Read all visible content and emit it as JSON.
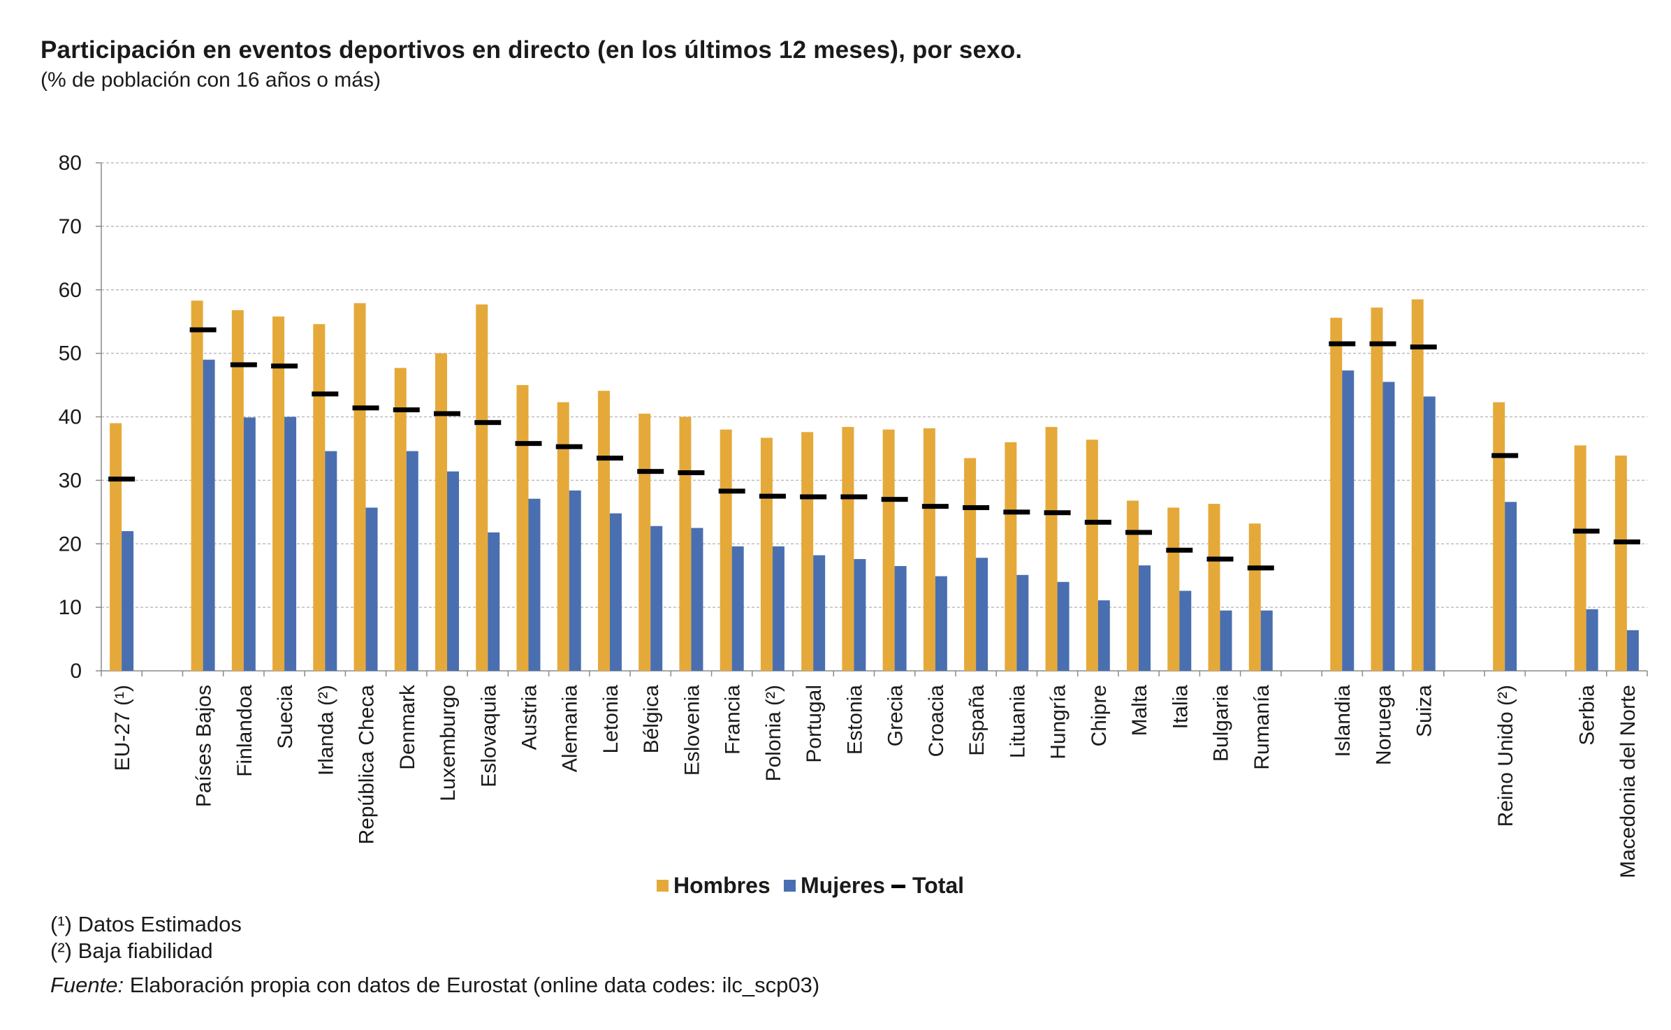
{
  "title": "Participación en eventos deportivos en directo (en los últimos 12 meses), por sexo.",
  "subtitle": "(% de población con 16 años o más)",
  "notes": [
    "(¹) Datos Estimados",
    "(²) Baja fiabilidad"
  ],
  "source_prefix": "Fuente:",
  "source_text": " Elaboración propia con datos de Eurostat (online data codes: ilc_scp03)",
  "chart_data": {
    "type": "bar",
    "title": "Participación en eventos deportivos en directo (en los últimos 12 meses), por sexo.",
    "subtitle": "(% de población con 16 años o más)",
    "ylim": [
      0,
      80
    ],
    "yticks": [
      0,
      10,
      20,
      30,
      40,
      50,
      60,
      70,
      80
    ],
    "grid": true,
    "legend_position": "bottom",
    "legend": [
      "Hombres",
      "Mujeres",
      "Total"
    ],
    "colors": {
      "Hombres": "#E5A93A",
      "Mujeres": "#4A6FB0",
      "Total": "#000000"
    },
    "groups": [
      [
        "EU-27 (¹)"
      ],
      [
        "Países Bajos",
        "Finlandoa",
        "Suecia",
        "Irlanda (²)",
        "República Checa",
        "Denmark",
        "Luxemburgo",
        "Eslovaquia",
        "Austria",
        "Alemania",
        "Letonia",
        "Bélgica",
        "Eslovenia",
        "Francia",
        "Polonia (²)",
        "Portugal",
        "Estonia",
        "Grecia",
        "Croacia",
        "España",
        "Lituania",
        "Hungría",
        "Chipre",
        "Malta",
        "Italia",
        "Bulgaria",
        "Rumanía"
      ],
      [
        "Islandia",
        "Noruega",
        "Suiza"
      ],
      [
        "Reino Unido (²)"
      ],
      [
        "Serbia",
        "Macedonia del Norte"
      ]
    ],
    "categories": [
      "EU-27 (¹)",
      "Países Bajos",
      "Finlandoa",
      "Suecia",
      "Irlanda (²)",
      "República Checa",
      "Denmark",
      "Luxemburgo",
      "Eslovaquia",
      "Austria",
      "Alemania",
      "Letonia",
      "Bélgica",
      "Eslovenia",
      "Francia",
      "Polonia (²)",
      "Portugal",
      "Estonia",
      "Grecia",
      "Croacia",
      "España",
      "Lituania",
      "Hungría",
      "Chipre",
      "Malta",
      "Italia",
      "Bulgaria",
      "Rumanía",
      "Islandia",
      "Noruega",
      "Suiza",
      "Reino Unido (²)",
      "Serbia",
      "Macedonia del Norte"
    ],
    "series": [
      {
        "name": "Hombres",
        "values": [
          39,
          58.3,
          56.8,
          55.8,
          54.6,
          57.9,
          47.7,
          50,
          57.7,
          45,
          42.3,
          44.1,
          40.5,
          40,
          38,
          36.7,
          37.6,
          38.4,
          38,
          38.2,
          33.5,
          36,
          38.4,
          36.4,
          26.8,
          25.7,
          26.3,
          23.2,
          55.6,
          57.2,
          58.5,
          42.3,
          35.5,
          33.9
        ]
      },
      {
        "name": "Mujeres",
        "values": [
          22,
          49,
          39.9,
          40,
          34.6,
          25.7,
          34.6,
          31.4,
          21.8,
          27.1,
          28.4,
          24.8,
          22.8,
          22.5,
          19.6,
          19.6,
          18.2,
          17.6,
          16.5,
          14.9,
          17.8,
          15.1,
          14,
          11.1,
          16.6,
          12.6,
          9.5,
          9.5,
          47.3,
          45.5,
          43.2,
          26.6,
          9.7,
          6.4
        ]
      },
      {
        "name": "Total",
        "values": [
          30.2,
          53.7,
          48.2,
          48,
          43.6,
          41.4,
          41.1,
          40.5,
          39.1,
          35.8,
          35.3,
          33.5,
          31.4,
          31.2,
          28.3,
          27.5,
          27.4,
          27.4,
          27,
          25.9,
          25.7,
          25,
          24.9,
          23.4,
          21.8,
          19,
          17.6,
          16.2,
          51.5,
          51.5,
          51,
          33.9,
          22,
          20.3
        ]
      }
    ]
  }
}
